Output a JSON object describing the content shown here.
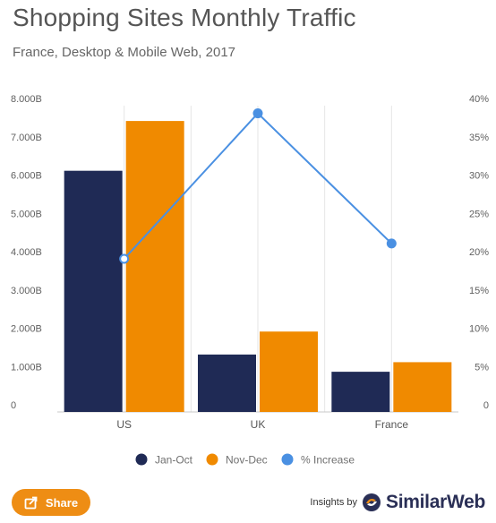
{
  "header": {
    "title": "Shopping Sites Monthly Traffic",
    "subtitle": "France, Desktop & Mobile Web, 2017"
  },
  "chart_data": {
    "type": "bar",
    "categories": [
      "US",
      "UK",
      "France"
    ],
    "series": [
      {
        "name": "Jan-Oct",
        "values": [
          6.3,
          1.5,
          1.05
        ],
        "color": "#1f2a55",
        "axis": "left",
        "kind": "bar"
      },
      {
        "name": "Nov-Dec",
        "values": [
          7.6,
          2.1,
          1.3
        ],
        "color": "#f08a00",
        "axis": "left",
        "kind": "bar"
      },
      {
        "name": "% Increase",
        "values": [
          20,
          39,
          22
        ],
        "color": "#4a90e2",
        "axis": "right",
        "kind": "line"
      }
    ],
    "y_left": {
      "ylim": [
        0,
        8
      ],
      "ticks": [
        "0",
        "1.000B",
        "2.000B",
        "3.000B",
        "4.000B",
        "5.000B",
        "6.000B",
        "7.000B",
        "8.000B"
      ]
    },
    "y_right": {
      "ylim": [
        0,
        40
      ],
      "ticks": [
        "0",
        "5%",
        "10%",
        "15%",
        "20%",
        "25%",
        "30%",
        "35%",
        "40%"
      ]
    },
    "legend_position": "bottom",
    "grid": "vertical"
  },
  "footer": {
    "share_label": "Share",
    "insights_label": "Insights by",
    "brand_name": "SimilarWeb"
  }
}
